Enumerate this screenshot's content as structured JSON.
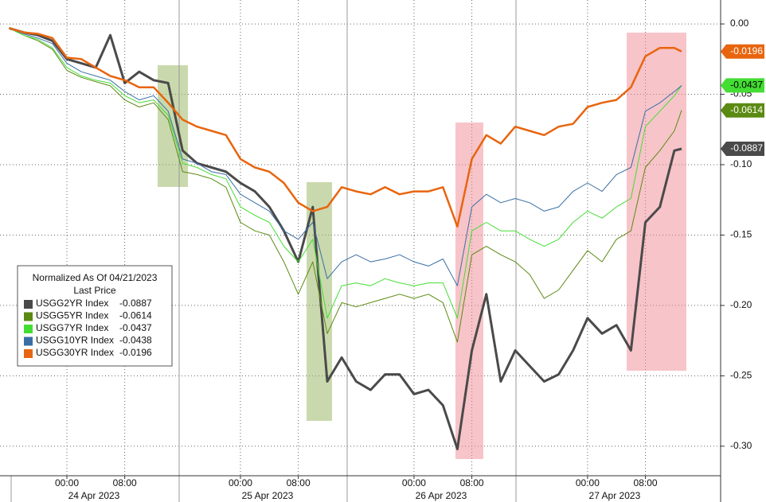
{
  "chart_data": {
    "type": "line",
    "legend": {
      "title": "Normalized As Of 04/21/2023",
      "subtitle": "Last Price"
    },
    "x": [
      "2023-04-23 16:00",
      "2023-04-23 18:00",
      "2023-04-23 20:00",
      "2023-04-23 22:00",
      "2023-04-24 00:00",
      "2023-04-24 02:00",
      "2023-04-24 04:00",
      "2023-04-24 06:00",
      "2023-04-24 08:00",
      "2023-04-24 10:00",
      "2023-04-24 12:00",
      "2023-04-24 14:00",
      "2023-04-24 16:00",
      "2023-04-24 18:00",
      "2023-04-24 20:00",
      "2023-04-24 22:00",
      "2023-04-25 00:00",
      "2023-04-25 02:00",
      "2023-04-25 04:00",
      "2023-04-25 06:00",
      "2023-04-25 08:00",
      "2023-04-25 10:00",
      "2023-04-25 12:00",
      "2023-04-25 14:00",
      "2023-04-25 16:00",
      "2023-04-25 18:00",
      "2023-04-25 20:00",
      "2023-04-25 22:00",
      "2023-04-26 00:00",
      "2023-04-26 02:00",
      "2023-04-26 04:00",
      "2023-04-26 06:00",
      "2023-04-26 08:00",
      "2023-04-26 10:00",
      "2023-04-26 12:00",
      "2023-04-26 14:00",
      "2023-04-26 16:00",
      "2023-04-26 18:00",
      "2023-04-26 20:00",
      "2023-04-26 22:00",
      "2023-04-27 00:00",
      "2023-04-27 02:00",
      "2023-04-27 04:00",
      "2023-04-27 06:00",
      "2023-04-27 08:00",
      "2023-04-27 10:00",
      "2023-04-27 12:00",
      "2023-04-27 13:00"
    ],
    "series": [
      {
        "name": "USGG2YR Index",
        "color": "#4a4a4a",
        "width": 3,
        "values": [
          -0.003,
          -0.006,
          -0.008,
          -0.012,
          -0.025,
          -0.028,
          -0.031,
          -0.008,
          -0.042,
          -0.034,
          -0.04,
          -0.042,
          -0.09,
          -0.099,
          -0.102,
          -0.105,
          -0.113,
          -0.119,
          -0.13,
          -0.147,
          -0.169,
          -0.13,
          -0.254,
          -0.237,
          -0.254,
          -0.26,
          -0.249,
          -0.249,
          -0.263,
          -0.26,
          -0.271,
          -0.302,
          -0.232,
          -0.192,
          -0.254,
          -0.232,
          -0.243,
          -0.254,
          -0.249,
          -0.232,
          -0.209,
          -0.22,
          -0.214,
          -0.232,
          -0.141,
          -0.13,
          -0.09,
          -0.0887
        ]
      },
      {
        "name": "USGG5YR Index",
        "color": "#5b8a12",
        "width": 1,
        "values": [
          -0.003,
          -0.008,
          -0.012,
          -0.018,
          -0.033,
          -0.038,
          -0.041,
          -0.044,
          -0.054,
          -0.059,
          -0.056,
          -0.068,
          -0.105,
          -0.107,
          -0.11,
          -0.116,
          -0.141,
          -0.147,
          -0.15,
          -0.169,
          -0.192,
          -0.169,
          -0.22,
          -0.198,
          -0.201,
          -0.198,
          -0.195,
          -0.192,
          -0.195,
          -0.192,
          -0.198,
          -0.226,
          -0.164,
          -0.158,
          -0.164,
          -0.169,
          -0.178,
          -0.195,
          -0.189,
          -0.175,
          -0.161,
          -0.169,
          -0.153,
          -0.147,
          -0.102,
          -0.09,
          -0.076,
          -0.0614
        ]
      },
      {
        "name": "USGG7YR Index",
        "color": "#44dd33",
        "width": 1,
        "values": [
          -0.003,
          -0.008,
          -0.011,
          -0.017,
          -0.031,
          -0.037,
          -0.04,
          -0.042,
          -0.051,
          -0.056,
          -0.054,
          -0.065,
          -0.099,
          -0.102,
          -0.107,
          -0.11,
          -0.13,
          -0.136,
          -0.141,
          -0.158,
          -0.169,
          -0.153,
          -0.209,
          -0.186,
          -0.184,
          -0.186,
          -0.181,
          -0.184,
          -0.186,
          -0.184,
          -0.184,
          -0.209,
          -0.147,
          -0.141,
          -0.147,
          -0.147,
          -0.153,
          -0.158,
          -0.153,
          -0.141,
          -0.133,
          -0.138,
          -0.13,
          -0.124,
          -0.073,
          -0.062,
          -0.051,
          -0.0437
        ]
      },
      {
        "name": "USGG10YR Index",
        "color": "#3a6ea5",
        "width": 1,
        "values": [
          -0.003,
          -0.007,
          -0.01,
          -0.014,
          -0.028,
          -0.034,
          -0.037,
          -0.04,
          -0.048,
          -0.054,
          -0.051,
          -0.062,
          -0.096,
          -0.099,
          -0.105,
          -0.107,
          -0.121,
          -0.127,
          -0.133,
          -0.147,
          -0.153,
          -0.141,
          -0.181,
          -0.169,
          -0.164,
          -0.169,
          -0.167,
          -0.164,
          -0.169,
          -0.172,
          -0.167,
          -0.186,
          -0.13,
          -0.121,
          -0.127,
          -0.124,
          -0.127,
          -0.133,
          -0.13,
          -0.119,
          -0.113,
          -0.119,
          -0.107,
          -0.102,
          -0.062,
          -0.056,
          -0.048,
          -0.0438
        ]
      },
      {
        "name": "USGG30YR Index",
        "color": "#e8650f",
        "width": 2.5,
        "values": [
          -0.003,
          -0.006,
          -0.007,
          -0.01,
          -0.024,
          -0.025,
          -0.031,
          -0.037,
          -0.04,
          -0.045,
          -0.045,
          -0.056,
          -0.068,
          -0.073,
          -0.076,
          -0.079,
          -0.096,
          -0.102,
          -0.105,
          -0.113,
          -0.127,
          -0.133,
          -0.13,
          -0.116,
          -0.119,
          -0.121,
          -0.116,
          -0.121,
          -0.119,
          -0.119,
          -0.116,
          -0.144,
          -0.096,
          -0.079,
          -0.085,
          -0.073,
          -0.076,
          -0.079,
          -0.073,
          -0.071,
          -0.059,
          -0.056,
          -0.054,
          -0.045,
          -0.023,
          -0.017,
          -0.017,
          -0.0196
        ]
      }
    ],
    "xlim": [
      "2023-04-23 14:45",
      "2023-04-27 18:24"
    ],
    "xticks": [
      {
        "value": "2023-04-24 00:00",
        "label": "00:00"
      },
      {
        "value": "2023-04-24 08:00",
        "label": "08:00"
      },
      {
        "value": "2023-04-25 00:00",
        "label": "00:00"
      },
      {
        "value": "2023-04-25 08:00",
        "label": "08:00"
      },
      {
        "value": "2023-04-26 00:00",
        "label": "00:00"
      },
      {
        "value": "2023-04-26 08:00",
        "label": "08:00"
      },
      {
        "value": "2023-04-27 00:00",
        "label": "00:00"
      },
      {
        "value": "2023-04-27 08:00",
        "label": "08:00"
      }
    ],
    "dates": [
      {
        "value": "2023-04-24",
        "label": "24 Apr 2023"
      },
      {
        "value": "2023-04-25",
        "label": "25 Apr 2023"
      },
      {
        "value": "2023-04-26",
        "label": "26 Apr 2023"
      },
      {
        "value": "2023-04-27",
        "label": "27 Apr 2023"
      }
    ],
    "ylim": [
      -0.321,
      0.017
    ],
    "yticks": [
      {
        "value": 0,
        "label": "0.00"
      },
      {
        "value": -0.05,
        "label": "-0.05"
      },
      {
        "value": -0.1,
        "label": "-0.10"
      },
      {
        "value": -0.15,
        "label": "-0.15"
      },
      {
        "value": -0.2,
        "label": "-0.20"
      },
      {
        "value": -0.25,
        "label": "-0.25"
      },
      {
        "value": -0.3,
        "label": "-0.30"
      }
    ],
    "grid": true
  }
}
